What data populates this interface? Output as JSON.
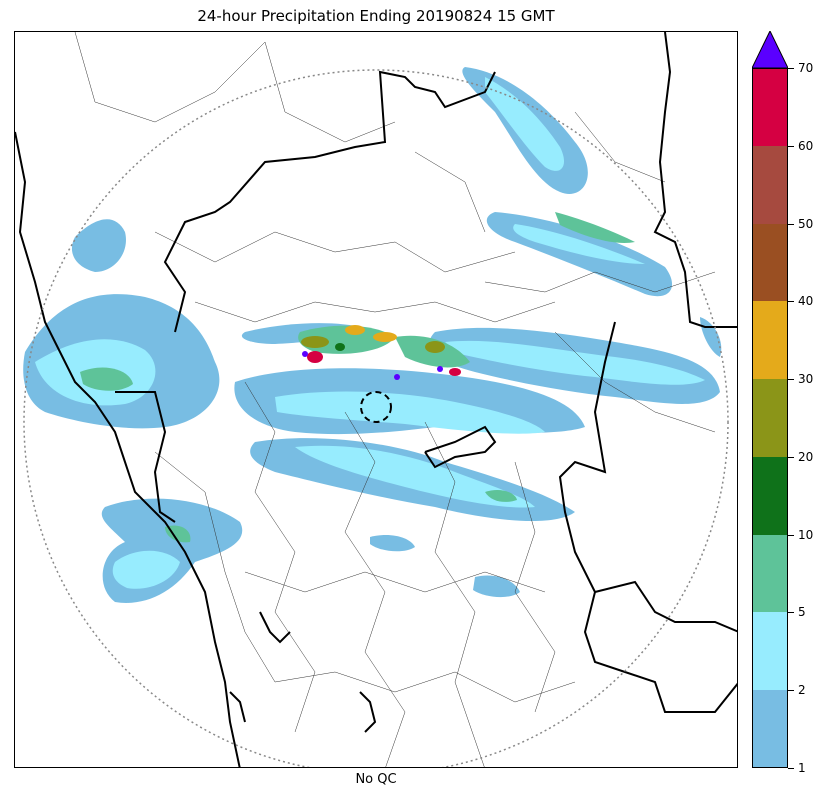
{
  "title": "24-hour Precipitation Ending 20190824 15 GMT",
  "xlabel": "No QC",
  "colorbar": {
    "levels": [
      {
        "lo": 1,
        "hi": 2,
        "color": "#78bde3"
      },
      {
        "lo": 2,
        "hi": 5,
        "color": "#97ecfe"
      },
      {
        "lo": 5,
        "hi": 10,
        "color": "#5ec399"
      },
      {
        "lo": 10,
        "hi": 20,
        "color": "#0f721a"
      },
      {
        "lo": 20,
        "hi": 30,
        "color": "#8b9518"
      },
      {
        "lo": 30,
        "hi": 40,
        "color": "#e4aa1b"
      },
      {
        "lo": 40,
        "hi": 50,
        "color": "#9a4f22"
      },
      {
        "lo": 50,
        "hi": 60,
        "color": "#a64a3f"
      },
      {
        "lo": 60,
        "hi": 70,
        "color": "#d50042"
      }
    ],
    "extend_color": "#5a00ff",
    "tick_labels": [
      "1",
      "2",
      "5",
      "10",
      "20",
      "30",
      "40",
      "50",
      "60",
      "70"
    ]
  },
  "map_elements": {
    "radar_range_ring": "dotted circle",
    "radar_site_marker": "dashed circle",
    "borders": [
      "state boundaries",
      "district boundaries",
      "coastline"
    ]
  }
}
